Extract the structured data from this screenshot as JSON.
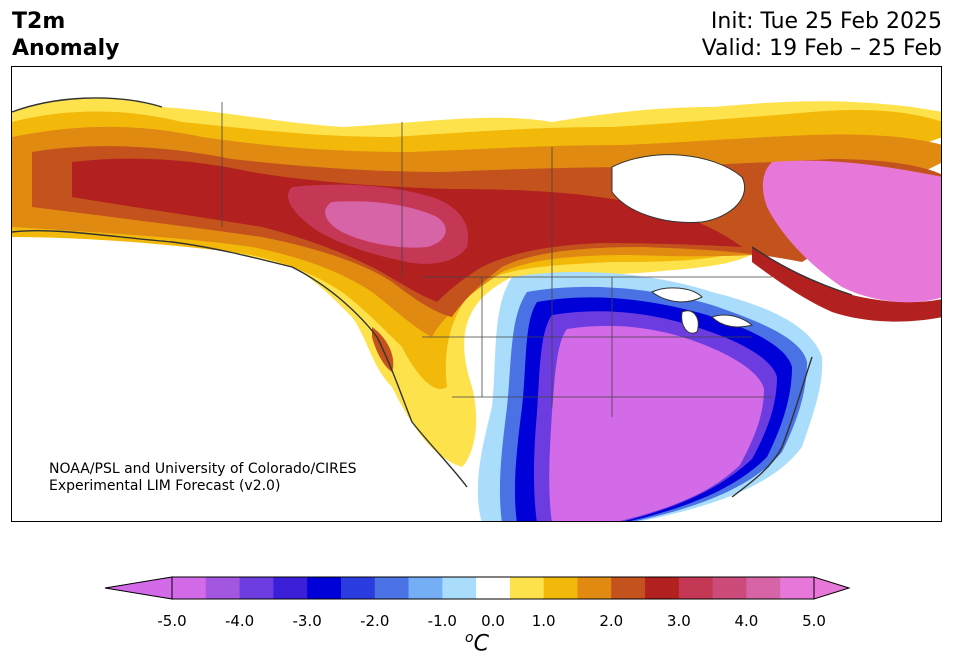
{
  "header": {
    "variable_line1": "T2m",
    "variable_line2": "Anomaly",
    "init": "Init: Tue 25 Feb 2025",
    "valid": "Valid: 19 Feb – 25 Feb"
  },
  "credit": {
    "line1": "NOAA/PSL and University of Colorado/CIRES",
    "line2": "Experimental LIM Forecast (v2.0)"
  },
  "colorbar": {
    "unit_base": "C",
    "unit_sup": "o",
    "ticks": [
      "-5.0",
      "-4.0",
      "-3.0",
      "-2.0",
      "-1.0",
      "0.0",
      "1.0",
      "2.0",
      "3.0",
      "4.0",
      "5.0"
    ],
    "levels": [
      -5.0,
      -4.5,
      -4.0,
      -3.5,
      -3.0,
      -2.5,
      -2.0,
      -1.5,
      -1.0,
      -0.5,
      0.5,
      1.0,
      1.5,
      2.0,
      2.5,
      3.0,
      3.5,
      4.0,
      4.5,
      5.0
    ],
    "colors": [
      "#d36ae8",
      "#a356e0",
      "#6d3ce0",
      "#3a1fd8",
      "#0000d8",
      "#2a3ce0",
      "#4a72e4",
      "#74aef4",
      "#aadcfc",
      "#ffffff",
      "#fde24c",
      "#f2b80a",
      "#e08a12",
      "#c4521c",
      "#b22020",
      "#c43855",
      "#cc4b7a",
      "#d864a8",
      "#e778da"
    ],
    "under_color": "#d36ae8",
    "over_color": "#e778da"
  },
  "map": {
    "region": "North America",
    "quantity": "2 m temperature anomaly forecast"
  }
}
